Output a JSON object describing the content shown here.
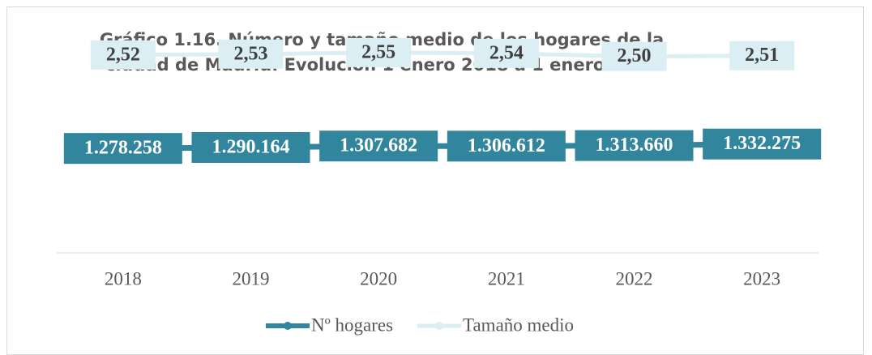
{
  "chart_data": {
    "type": "line",
    "title": "Gráfico 1.16. Número y tamaño medio de los hogares de la ciudad de Madrid. Evolución 1 enero 2018 a 1 enero 2023",
    "categories": [
      "2018",
      "2019",
      "2020",
      "2021",
      "2022",
      "2023"
    ],
    "series": [
      {
        "name": "Nº hogares",
        "color": "#31859c",
        "values": [
          1278258,
          1290164,
          1307682,
          1306612,
          1313660,
          1332275
        ],
        "value_labels": [
          "1.278.258",
          "1.290.164",
          "1.307.682",
          "1.306.612",
          "1.313.660",
          "1.332.275"
        ]
      },
      {
        "name": "Tamaño medio",
        "color": "#daeef3",
        "axis": "y2",
        "values": [
          2.52,
          2.53,
          2.55,
          2.54,
          2.5,
          2.51
        ],
        "value_labels": [
          "2,52",
          "2,53",
          "2,55",
          "2,54",
          "2,50",
          "2,51"
        ]
      }
    ],
    "ylim": [
      0,
      2500000
    ],
    "y2lim": [
      0,
      2.6
    ],
    "legend": "bottom"
  }
}
